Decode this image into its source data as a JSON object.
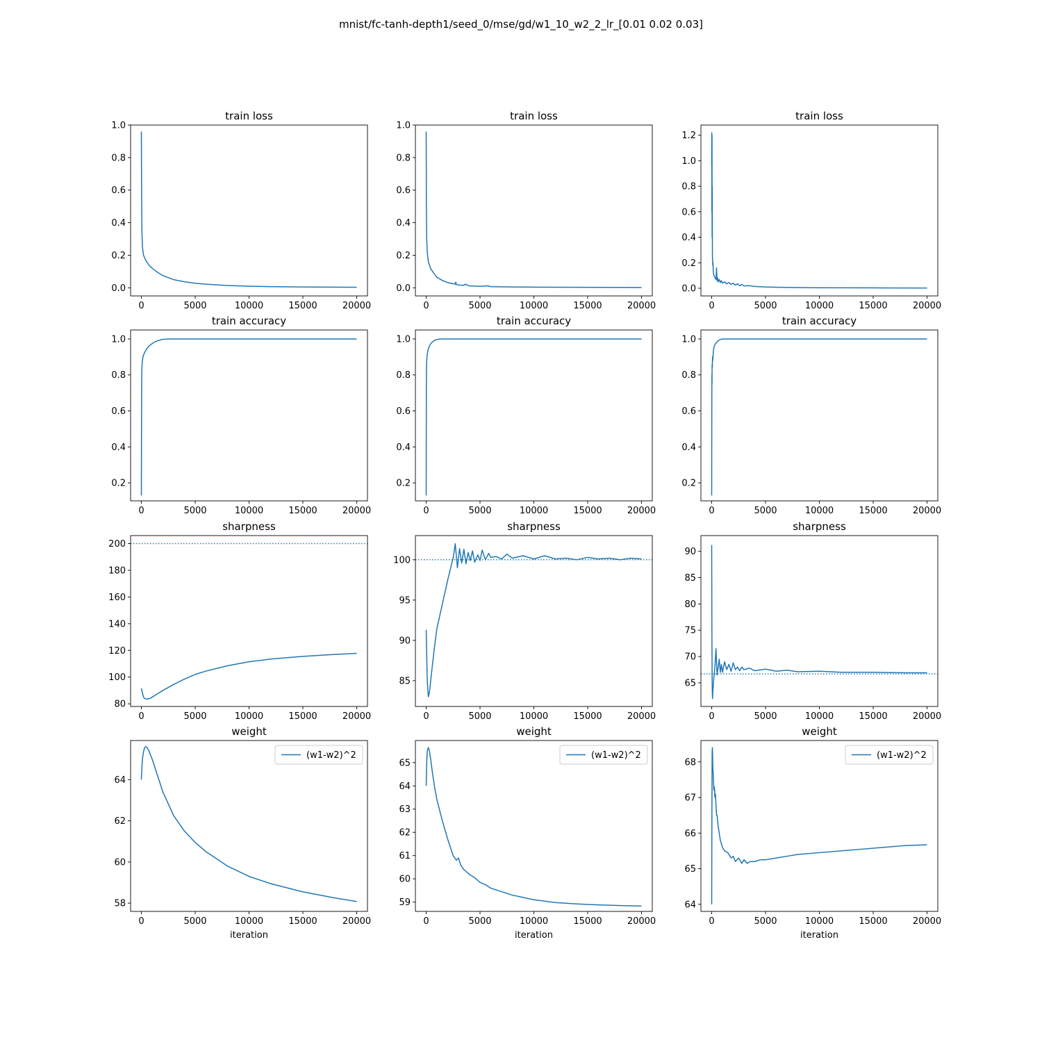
{
  "figure": {
    "suptitle": "mnist/fc-tanh-depth1/seed_0/mse/gd/w1_10_w2_2_lr_[0.01 0.02 0.03]",
    "line_color": "#1f77b4"
  },
  "chart_data": [
    {
      "id": "loss-lr1",
      "type": "line",
      "title": "train loss",
      "xlabel": "",
      "xlim": [
        -1000,
        21000
      ],
      "ylim": [
        -0.05,
        1.0
      ],
      "xticks": [
        0,
        5000,
        10000,
        15000,
        20000
      ],
      "yticks": [
        0.0,
        0.2,
        0.4,
        0.6,
        0.8,
        1.0
      ],
      "series": [
        {
          "x": [
            0,
            20,
            50,
            100,
            200,
            400,
            700,
            1000,
            1500,
            2000,
            3000,
            4000,
            5000,
            6000,
            8000,
            10000,
            12000,
            15000,
            18000,
            20000
          ],
          "y": [
            0.96,
            0.6,
            0.35,
            0.25,
            0.2,
            0.17,
            0.14,
            0.12,
            0.095,
            0.075,
            0.05,
            0.037,
            0.028,
            0.022,
            0.014,
            0.01,
            0.007,
            0.005,
            0.004,
            0.003
          ]
        }
      ]
    },
    {
      "id": "loss-lr2",
      "type": "line",
      "title": "train loss",
      "xlabel": "",
      "xlim": [
        -1000,
        21000
      ],
      "ylim": [
        -0.05,
        1.0
      ],
      "xticks": [
        0,
        5000,
        10000,
        15000,
        20000
      ],
      "yticks": [
        0.0,
        0.2,
        0.4,
        0.6,
        0.8,
        1.0
      ],
      "series": [
        {
          "x": [
            0,
            20,
            50,
            100,
            200,
            400,
            700,
            1000,
            1500,
            2000,
            2700,
            2750,
            2800,
            3000,
            3500,
            3600,
            4000,
            5000,
            5700,
            6000,
            8000,
            10000,
            15000,
            20000
          ],
          "y": [
            0.96,
            0.5,
            0.3,
            0.22,
            0.16,
            0.12,
            0.09,
            0.065,
            0.045,
            0.032,
            0.022,
            0.035,
            0.02,
            0.017,
            0.015,
            0.022,
            0.012,
            0.009,
            0.012,
            0.007,
            0.005,
            0.004,
            0.003,
            0.002
          ]
        }
      ]
    },
    {
      "id": "loss-lr3",
      "type": "line",
      "title": "train loss",
      "xlabel": "",
      "xlim": [
        -1000,
        21000
      ],
      "ylim": [
        -0.06,
        1.28
      ],
      "xticks": [
        0,
        5000,
        10000,
        15000,
        20000
      ],
      "yticks": [
        0.0,
        0.2,
        0.4,
        0.6,
        0.8,
        1.0,
        1.2
      ],
      "series": [
        {
          "x": [
            0,
            10,
            20,
            30,
            40,
            50,
            70,
            100,
            120,
            150,
            200,
            300,
            400,
            450,
            500,
            550,
            600,
            700,
            800,
            900,
            1000,
            1200,
            1400,
            1600,
            1800,
            2000,
            2200,
            2400,
            2600,
            2800,
            3000,
            3500,
            4000,
            5000,
            6000,
            8000,
            10000,
            15000,
            20000
          ],
          "y": [
            0.96,
            1.22,
            0.6,
            1.2,
            0.4,
            0.8,
            0.25,
            0.18,
            0.2,
            0.13,
            0.1,
            0.085,
            0.07,
            0.16,
            0.06,
            0.08,
            0.05,
            0.07,
            0.045,
            0.06,
            0.04,
            0.05,
            0.035,
            0.045,
            0.03,
            0.04,
            0.025,
            0.035,
            0.02,
            0.03,
            0.018,
            0.02,
            0.014,
            0.01,
            0.008,
            0.006,
            0.004,
            0.003,
            0.002
          ]
        }
      ]
    },
    {
      "id": "acc-lr1",
      "type": "line",
      "title": "train accuracy",
      "xlabel": "",
      "xlim": [
        -1000,
        21000
      ],
      "ylim": [
        0.1,
        1.05
      ],
      "xticks": [
        0,
        5000,
        10000,
        15000,
        20000
      ],
      "yticks": [
        0.2,
        0.4,
        0.6,
        0.8,
        1.0
      ],
      "series": [
        {
          "x": [
            0,
            10,
            20,
            30,
            50,
            80,
            100,
            150,
            200,
            300,
            400,
            500,
            700,
            900,
            1200,
            1500,
            1800,
            2000,
            2500,
            20000
          ],
          "y": [
            0.13,
            0.4,
            0.65,
            0.78,
            0.84,
            0.87,
            0.88,
            0.9,
            0.91,
            0.925,
            0.935,
            0.945,
            0.96,
            0.97,
            0.982,
            0.99,
            0.995,
            0.998,
            1.0,
            1.0
          ]
        }
      ]
    },
    {
      "id": "acc-lr2",
      "type": "line",
      "title": "train accuracy",
      "xlabel": "",
      "xlim": [
        -1000,
        21000
      ],
      "ylim": [
        0.1,
        1.05
      ],
      "xticks": [
        0,
        5000,
        10000,
        15000,
        20000
      ],
      "yticks": [
        0.2,
        0.4,
        0.6,
        0.8,
        1.0
      ],
      "series": [
        {
          "x": [
            0,
            10,
            20,
            30,
            50,
            80,
            100,
            150,
            200,
            300,
            400,
            600,
            800,
            1000,
            1200,
            1500,
            20000
          ],
          "y": [
            0.13,
            0.5,
            0.75,
            0.84,
            0.88,
            0.9,
            0.915,
            0.93,
            0.945,
            0.96,
            0.972,
            0.985,
            0.993,
            0.997,
            0.999,
            1.0,
            1.0
          ]
        }
      ]
    },
    {
      "id": "acc-lr3",
      "type": "line",
      "title": "train accuracy",
      "xlabel": "",
      "xlim": [
        -1000,
        21000
      ],
      "ylim": [
        0.1,
        1.05
      ],
      "xticks": [
        0,
        5000,
        10000,
        15000,
        20000
      ],
      "yticks": [
        0.2,
        0.4,
        0.6,
        0.8,
        1.0
      ],
      "series": [
        {
          "x": [
            0,
            10,
            20,
            30,
            40,
            60,
            80,
            100,
            150,
            200,
            300,
            400,
            500,
            600,
            800,
            1000,
            20000
          ],
          "y": [
            0.13,
            0.55,
            0.8,
            0.75,
            0.86,
            0.84,
            0.9,
            0.88,
            0.93,
            0.95,
            0.97,
            0.975,
            0.985,
            0.99,
            0.997,
            1.0,
            1.0
          ]
        }
      ]
    },
    {
      "id": "sharp-lr1",
      "type": "line",
      "title": "sharpness",
      "xlabel": "",
      "xlim": [
        -1000,
        21000
      ],
      "ylim": [
        78,
        206
      ],
      "xticks": [
        0,
        5000,
        10000,
        15000,
        20000
      ],
      "yticks": [
        80,
        100,
        120,
        140,
        160,
        180,
        200
      ],
      "hline": 200,
      "series": [
        {
          "x": [
            0,
            100,
            200,
            300,
            500,
            800,
            1000,
            1500,
            2000,
            3000,
            4000,
            5000,
            6000,
            8000,
            10000,
            12000,
            15000,
            18000,
            20000
          ],
          "y": [
            91.5,
            88,
            85,
            84,
            83.5,
            84,
            85,
            87.5,
            90,
            94.5,
            98.5,
            102,
            104.5,
            108.5,
            111.5,
            113.5,
            115.5,
            117,
            117.8
          ]
        }
      ]
    },
    {
      "id": "sharp-lr2",
      "type": "line",
      "title": "sharpness",
      "xlabel": "",
      "xlim": [
        -1000,
        21000
      ],
      "ylim": [
        81.8,
        103
      ],
      "xticks": [
        0,
        5000,
        10000,
        15000,
        20000
      ],
      "yticks": [
        85,
        90,
        95,
        100
      ],
      "hline": 100,
      "series": [
        {
          "x": [
            0,
            100,
            200,
            300,
            500,
            800,
            1000,
            1500,
            2000,
            2500,
            2700,
            2900,
            3100,
            3300,
            3500,
            3700,
            3900,
            4100,
            4300,
            4500,
            4800,
            5000,
            5200,
            5500,
            5800,
            6000,
            6500,
            7000,
            7500,
            8000,
            9000,
            10000,
            11000,
            12000,
            13000,
            14000,
            15000,
            16000,
            17000,
            18000,
            19000,
            20000
          ],
          "y": [
            91.3,
            85,
            83,
            83.5,
            86,
            89.5,
            91.5,
            94.5,
            97.5,
            100.2,
            102,
            99,
            101.4,
            99.6,
            101.3,
            99.5,
            100.9,
            99.9,
            101.1,
            99.7,
            100.6,
            99.9,
            101.2,
            100,
            100.8,
            100.3,
            100.4,
            100.1,
            100.7,
            100.2,
            100.5,
            100.1,
            100.5,
            100.1,
            100.2,
            100,
            100.3,
            100.1,
            100.2,
            100,
            100.2,
            100.1
          ]
        }
      ]
    },
    {
      "id": "sharp-lr3",
      "type": "line",
      "title": "sharpness",
      "xlabel": "",
      "xlim": [
        -1000,
        21000
      ],
      "ylim": [
        60.5,
        93
      ],
      "xticks": [
        0,
        5000,
        10000,
        15000,
        20000
      ],
      "yticks": [
        65,
        70,
        75,
        80,
        85,
        90
      ],
      "hline": 66.7,
      "series": [
        {
          "x": [
            0,
            20,
            40,
            60,
            80,
            100,
            150,
            200,
            300,
            400,
            500,
            600,
            700,
            800,
            900,
            1000,
            1200,
            1400,
            1600,
            1800,
            2000,
            2200,
            2400,
            2600,
            2800,
            3000,
            3500,
            4000,
            5000,
            6000,
            7000,
            8000,
            10000,
            12000,
            15000,
            18000,
            20000
          ],
          "y": [
            91.2,
            75,
            66,
            63,
            62,
            63,
            64.5,
            66,
            68,
            71.5,
            66.5,
            68,
            69.5,
            67,
            68.5,
            67,
            69,
            67.5,
            68.5,
            67.2,
            68.8,
            67.5,
            68,
            67.3,
            68,
            67.5,
            67.8,
            67.3,
            67.6,
            67.2,
            67.4,
            67.1,
            67.2,
            67,
            67,
            66.9,
            66.9
          ]
        }
      ]
    },
    {
      "id": "weight-lr1",
      "type": "line",
      "title": "weight",
      "xlabel": "iteration",
      "xlim": [
        -1000,
        21000
      ],
      "ylim": [
        57.6,
        65.9
      ],
      "xticks": [
        0,
        5000,
        10000,
        15000,
        20000
      ],
      "yticks": [
        58,
        60,
        62,
        64
      ],
      "legend": {
        "label": "(w1-w2)^2",
        "position": "top-right"
      },
      "series": [
        {
          "name": "(w1-w2)^2",
          "x": [
            0,
            50,
            100,
            200,
            300,
            400,
            500,
            700,
            1000,
            1500,
            2000,
            3000,
            4000,
            5000,
            6000,
            8000,
            10000,
            12000,
            15000,
            18000,
            20000
          ],
          "y": [
            64.0,
            64.6,
            65.0,
            65.35,
            65.55,
            65.6,
            65.58,
            65.4,
            65.0,
            64.2,
            63.4,
            62.25,
            61.5,
            60.95,
            60.5,
            59.8,
            59.3,
            58.95,
            58.55,
            58.25,
            58.08
          ]
        }
      ]
    },
    {
      "id": "weight-lr2",
      "type": "line",
      "title": "weight",
      "xlabel": "iteration",
      "xlim": [
        -1000,
        21000
      ],
      "ylim": [
        58.6,
        65.95
      ],
      "xticks": [
        0,
        5000,
        10000,
        15000,
        20000
      ],
      "yticks": [
        59,
        60,
        61,
        62,
        63,
        64,
        65
      ],
      "legend": {
        "label": "(w1-w2)^2",
        "position": "top-right"
      },
      "series": [
        {
          "name": "(w1-w2)^2",
          "x": [
            0,
            50,
            100,
            200,
            300,
            400,
            600,
            800,
            1000,
            1500,
            2000,
            2500,
            2800,
            3000,
            3200,
            3500,
            4000,
            4500,
            5000,
            5500,
            6000,
            7000,
            8000,
            9000,
            10000,
            12000,
            14000,
            16000,
            18000,
            20000
          ],
          "y": [
            64.0,
            65.0,
            65.5,
            65.65,
            65.5,
            65.2,
            64.5,
            63.9,
            63.4,
            62.5,
            61.7,
            61.0,
            60.8,
            60.9,
            60.6,
            60.4,
            60.2,
            60.05,
            59.85,
            59.75,
            59.6,
            59.45,
            59.3,
            59.2,
            59.1,
            58.98,
            58.92,
            58.88,
            58.85,
            58.83
          ]
        }
      ]
    },
    {
      "id": "weight-lr3",
      "type": "line",
      "title": "weight",
      "xlabel": "iteration",
      "xlim": [
        -1000,
        21000
      ],
      "ylim": [
        63.8,
        68.6
      ],
      "xticks": [
        0,
        5000,
        10000,
        15000,
        20000
      ],
      "yticks": [
        64,
        65,
        66,
        67,
        68
      ],
      "legend": {
        "label": "(w1-w2)^2",
        "position": "top-right"
      },
      "series": [
        {
          "name": "(w1-w2)^2",
          "x": [
            0,
            20,
            40,
            60,
            80,
            100,
            150,
            200,
            250,
            300,
            350,
            400,
            450,
            500,
            600,
            700,
            800,
            1000,
            1200,
            1500,
            1800,
            2000,
            2200,
            2500,
            2800,
            3000,
            3300,
            3600,
            4000,
            4500,
            5000,
            6000,
            7000,
            8000,
            10000,
            12000,
            14000,
            16000,
            18000,
            20000
          ],
          "y": [
            64.0,
            66.5,
            68.2,
            68.4,
            68.3,
            67.9,
            67.6,
            67.2,
            67.3,
            67.0,
            67.1,
            66.8,
            66.5,
            66.5,
            66.2,
            66.0,
            65.8,
            65.6,
            65.5,
            65.45,
            65.3,
            65.35,
            65.2,
            65.3,
            65.15,
            65.25,
            65.15,
            65.2,
            65.2,
            65.25,
            65.25,
            65.3,
            65.35,
            65.4,
            65.45,
            65.5,
            65.55,
            65.6,
            65.65,
            65.67
          ]
        }
      ]
    }
  ]
}
